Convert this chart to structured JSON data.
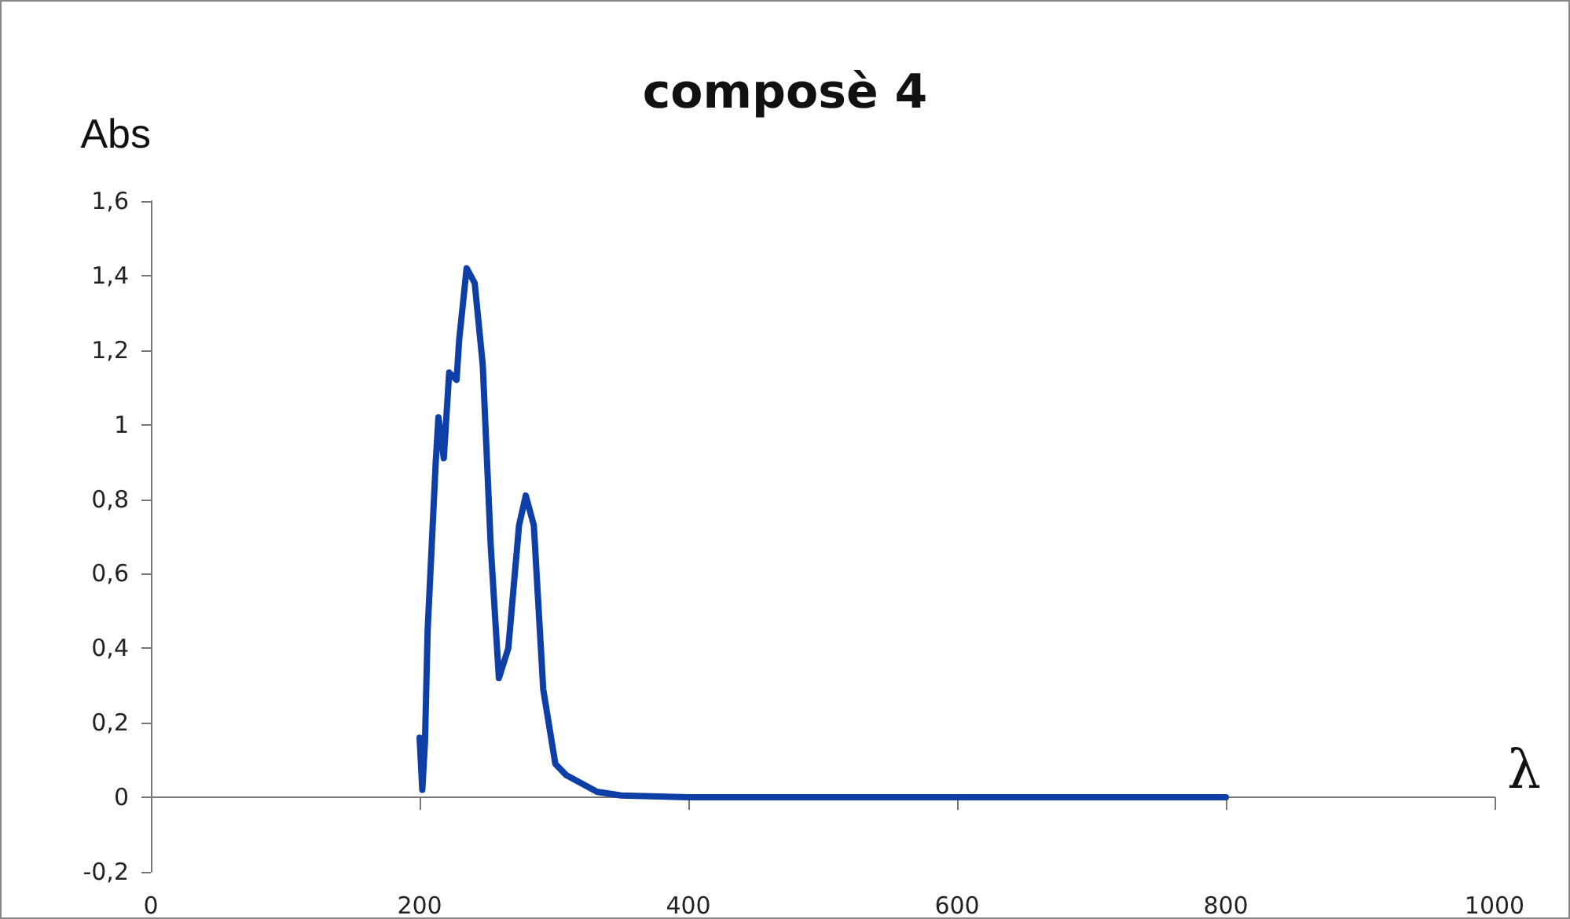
{
  "chart_data": {
    "type": "line",
    "title": "composè 4",
    "xlabel": "λ",
    "ylabel": "Abs",
    "x": [
      200,
      202,
      204,
      206,
      212,
      214,
      218,
      222,
      227.5,
      229.5,
      235,
      241,
      247,
      253,
      259,
      266,
      274,
      279,
      285,
      292,
      301,
      309,
      332,
      350,
      400,
      500,
      600,
      700,
      800
    ],
    "series": [
      {
        "color": "#0d3fa6",
        "values": [
          0.16,
          0.02,
          0.15,
          0.45,
          0.9,
          1.02,
          0.91,
          1.14,
          1.12,
          1.23,
          1.42,
          1.38,
          1.16,
          0.67,
          0.32,
          0.4,
          0.73,
          0.81,
          0.73,
          0.29,
          0.09,
          0.06,
          0.015,
          0.005,
          0,
          0,
          0,
          0,
          0
        ]
      }
    ],
    "xlim": [
      0,
      1000
    ],
    "xticks": [
      0,
      200,
      400,
      600,
      800,
      1000
    ],
    "ylim": [
      -0.2,
      1.6
    ],
    "yticks": [
      {
        "value": -0.2,
        "label": "-0,2"
      },
      {
        "value": 0,
        "label": "0"
      },
      {
        "value": 0.2,
        "label": "0,2"
      },
      {
        "value": 0.4,
        "label": "0,4"
      },
      {
        "value": 0.6,
        "label": "0,6"
      },
      {
        "value": 0.8,
        "label": "0,8"
      },
      {
        "value": 1,
        "label": "1"
      },
      {
        "value": 1.2,
        "label": "1,2"
      },
      {
        "value": 1.4,
        "label": "1,4"
      },
      {
        "value": 1.6,
        "label": "1,6"
      }
    ],
    "marker": "none",
    "line_style": "solid"
  }
}
